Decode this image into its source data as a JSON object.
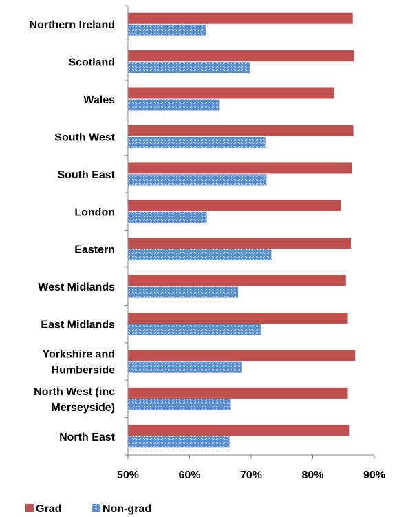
{
  "chart_data": {
    "type": "bar",
    "orientation": "horizontal",
    "title": "",
    "xlabel": "",
    "ylabel": "",
    "xlim": [
      50,
      90
    ],
    "x_ticks": [
      50,
      60,
      70,
      80,
      90
    ],
    "x_tick_labels": [
      "50%",
      "60%",
      "70%",
      "80%",
      "90%"
    ],
    "grid": false,
    "legend_position": "bottom-left",
    "categories": [
      [
        "Northern Ireland"
      ],
      [
        "Scotland"
      ],
      [
        "Wales"
      ],
      [
        "South West"
      ],
      [
        "South East"
      ],
      [
        "London"
      ],
      [
        "Eastern"
      ],
      [
        "West Midlands"
      ],
      [
        "East Midlands"
      ],
      [
        "Yorkshire and",
        "Humberside"
      ],
      [
        "North West (inc",
        "Merseyside)"
      ],
      [
        "North East"
      ]
    ],
    "series": [
      {
        "name": "Grad",
        "color": "#c0504d",
        "values": [
          86.5,
          86.7,
          83.5,
          86.6,
          86.4,
          84.6,
          86.2,
          85.4,
          85.7,
          86.9,
          85.7,
          85.9
        ]
      },
      {
        "name": "Non-grad",
        "color": "#4f81bd",
        "values": [
          62.7,
          69.8,
          64.9,
          72.3,
          72.5,
          62.8,
          73.3,
          67.9,
          71.6,
          68.5,
          66.7,
          66.5
        ]
      }
    ]
  }
}
